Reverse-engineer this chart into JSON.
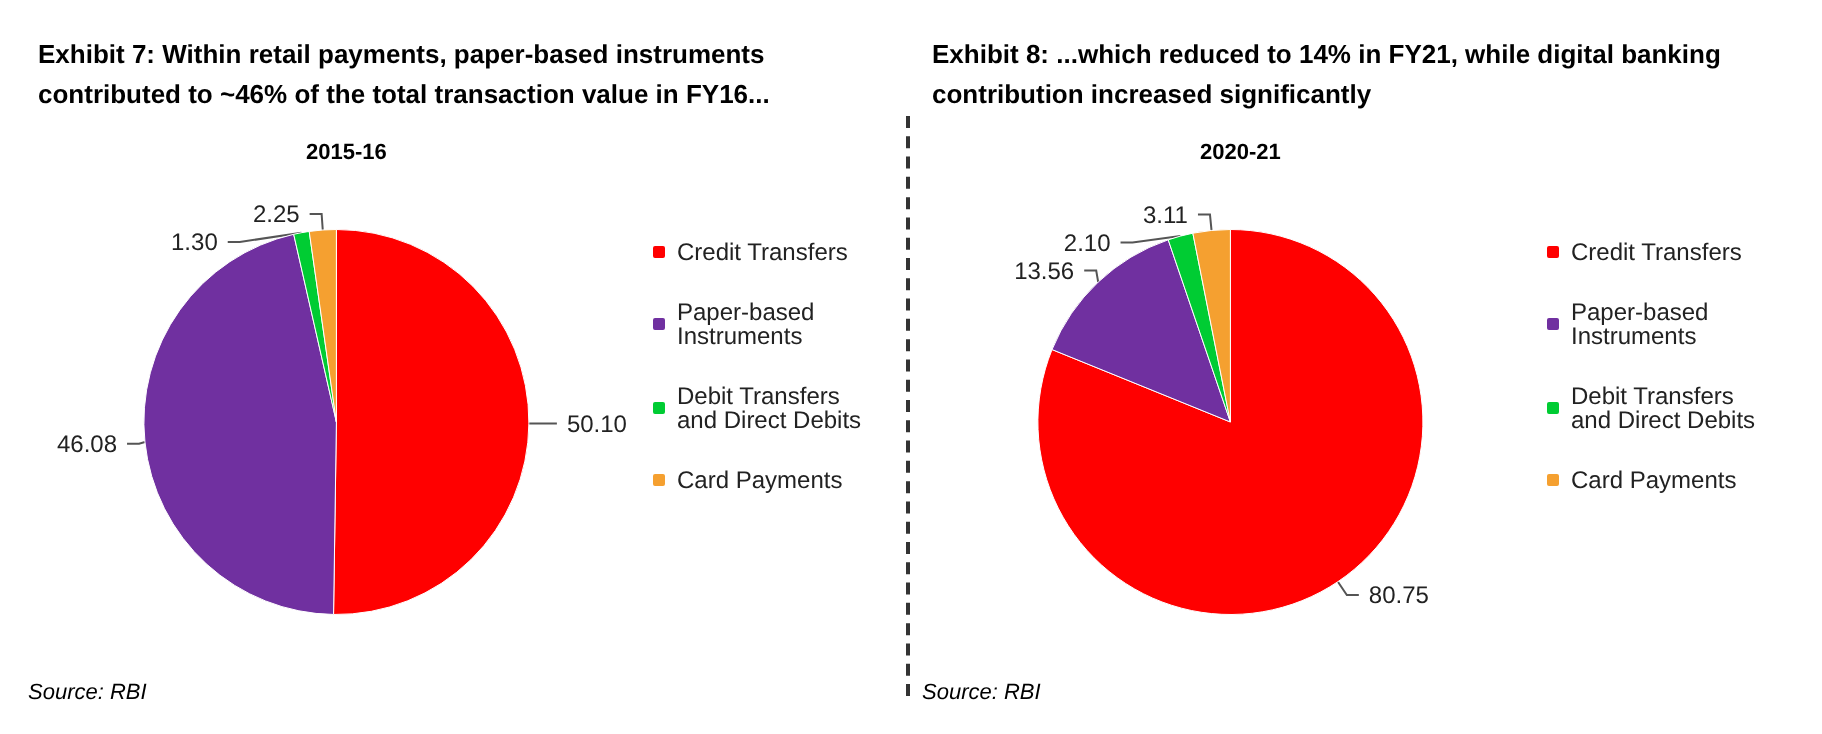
{
  "chart_data": [
    {
      "type": "pie",
      "title": "Exhibit 7: Within retail payments, paper-based instruments contributed to ~46% of the total transaction value in FY16...",
      "subtitle": "2015-16",
      "categories": [
        "Credit Transfers",
        "Paper-based Instruments",
        "Debit Transfers and Direct Debits",
        "Card Payments"
      ],
      "values": [
        50.1,
        46.08,
        1.3,
        2.25
      ],
      "value_labels": [
        "50.10",
        "46.08",
        "1.30",
        "2.25"
      ],
      "colors": [
        "#ff0000",
        "#7030a0",
        "#00cc33",
        "#f5a030"
      ],
      "legend": "right",
      "annotations": [
        "Source: RBI"
      ]
    },
    {
      "type": "pie",
      "title": "Exhibit 8: ...which reduced to 14% in FY21, while digital banking contribution increased significantly",
      "subtitle": "2020-21",
      "categories": [
        "Credit Transfers",
        "Paper-based Instruments",
        "Debit Transfers and Direct Debits",
        "Card Payments"
      ],
      "values": [
        80.75,
        13.56,
        2.1,
        3.11
      ],
      "value_labels": [
        "80.75",
        "13.56",
        "2.10",
        "3.11"
      ],
      "colors": [
        "#ff0000",
        "#7030a0",
        "#00cc33",
        "#f5a030"
      ],
      "legend": "right",
      "annotations": [
        "Source: RBI"
      ]
    }
  ]
}
